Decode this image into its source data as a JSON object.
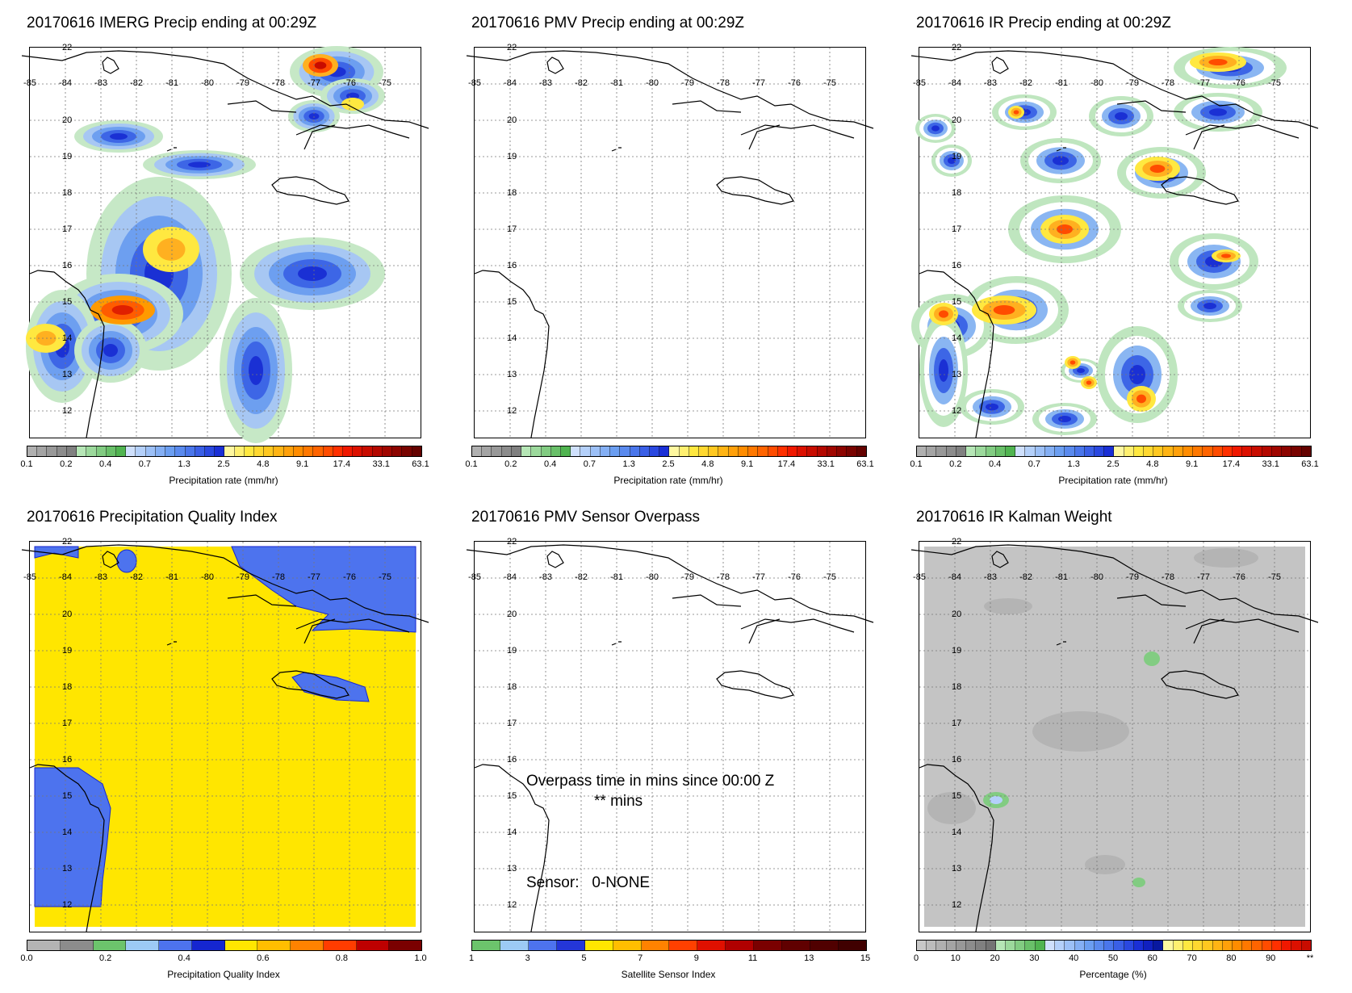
{
  "panels": [
    {
      "title": "20170616 IMERG Precip ending at 00:29Z",
      "colorbar": "precip",
      "fill": "imerg"
    },
    {
      "title": "20170616 PMV Precip ending at 00:29Z",
      "colorbar": "precip",
      "fill": "none"
    },
    {
      "title": "20170616 IR Precip ending at 00:29Z",
      "colorbar": "precip",
      "fill": "ir"
    },
    {
      "title": "20170616 Precipitation Quality Index",
      "colorbar": "quality",
      "fill": "quality"
    },
    {
      "title": "20170616 PMV Sensor Overpass",
      "colorbar": "sensor",
      "fill": "none"
    },
    {
      "title": "20170616 IR Kalman Weight",
      "colorbar": "kalman",
      "fill": "kalman"
    }
  ],
  "overpass": {
    "line1": "Overpass time in mins since 00:00 Z",
    "line2": "** mins",
    "sensor": "Sensor:   0-NONE"
  },
  "axes": {
    "lon_labels": [
      "-85",
      "-84",
      "-83",
      "-82",
      "-81",
      "-80",
      "-79",
      "-78",
      "-77",
      "-76",
      "-75"
    ],
    "lat_labels": [
      "22",
      "20",
      "19",
      "18",
      "17",
      "16",
      "15",
      "14",
      "13",
      "12"
    ]
  },
  "colorbars": {
    "precip": {
      "title": "Precipitation rate (mm/hr)",
      "labels": [
        "0.1",
        "0.2",
        "0.4",
        "0.7",
        "1.3",
        "2.5",
        "4.8",
        "9.1",
        "17.4",
        "33.1",
        "63.1"
      ],
      "colors": [
        "#b0b0b0",
        "#a4a4a4",
        "#989898",
        "#8c8c8c",
        "#808080",
        "#b6e6b6",
        "#9cd99c",
        "#82cc82",
        "#69c069",
        "#50b450",
        "#cfe0fc",
        "#b4d0fa",
        "#9cc0f7",
        "#84aff4",
        "#6b9ef1",
        "#5a8aee",
        "#4a76eb",
        "#3a5fe6",
        "#2a48e0",
        "#1a2fd6",
        "#fff8a0",
        "#fff070",
        "#ffe840",
        "#ffd830",
        "#ffc820",
        "#ffb414",
        "#ffa00a",
        "#ff8c00",
        "#ff7800",
        "#ff6400",
        "#ff4c00",
        "#ff3000",
        "#f01800",
        "#dc1000",
        "#c80c00",
        "#b40800",
        "#a00600",
        "#8c0400",
        "#780300",
        "#640200"
      ]
    },
    "quality": {
      "title": "Precipitation Quality Index",
      "labels": [
        "0.0",
        "0.2",
        "0.4",
        "0.6",
        "0.8",
        "1.0"
      ],
      "colors": [
        "#b4b4b4",
        "#8c8c8c",
        "#6cc46c",
        "#9ccaf5",
        "#4d73ee",
        "#1526d0",
        "#ffe600",
        "#ffbe00",
        "#ff8200",
        "#ff3c00",
        "#be0000",
        "#7a0000"
      ]
    },
    "sensor": {
      "title": "Satellite Sensor Index",
      "labels": [
        "1",
        "3",
        "5",
        "7",
        "9",
        "11",
        "13",
        "15"
      ],
      "colors": [
        "#6cc46c",
        "#9ccaf5",
        "#4d73ee",
        "#2436d8",
        "#ffe600",
        "#ffbe00",
        "#ff8200",
        "#ff4000",
        "#e01000",
        "#b00000",
        "#7a0000",
        "#600000",
        "#500000",
        "#400000"
      ]
    },
    "kalman": {
      "title": "Percentage (%)",
      "labels": [
        "0",
        "10",
        "20",
        "30",
        "40",
        "50",
        "60",
        "70",
        "80",
        "90",
        "**"
      ],
      "colors": [
        "#c8c8c8",
        "#bcbcbc",
        "#b0b0b0",
        "#a4a4a4",
        "#989898",
        "#8c8c8c",
        "#808080",
        "#747474",
        "#b6e6b6",
        "#9cd99c",
        "#82cc82",
        "#69c069",
        "#50b450",
        "#cfe0fc",
        "#b4d0fa",
        "#9cc0f7",
        "#84aff4",
        "#6b9ef1",
        "#5a8aee",
        "#4a76eb",
        "#3a5fe6",
        "#2a48e0",
        "#1a2fd6",
        "#1020c0",
        "#0818a0",
        "#fff8a0",
        "#fff070",
        "#ffe840",
        "#ffd830",
        "#ffc820",
        "#ffb414",
        "#ffa00a",
        "#ff8c00",
        "#ff7800",
        "#ff6400",
        "#ff4c00",
        "#ff3000",
        "#f01800",
        "#dc1000",
        "#c80c00"
      ]
    }
  }
}
